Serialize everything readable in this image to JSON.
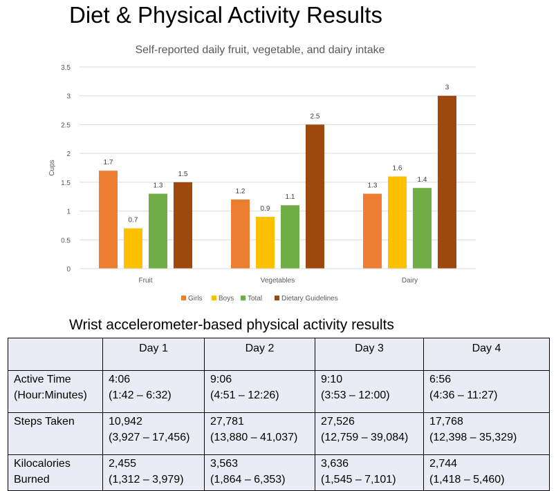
{
  "title": "Diet & Physical Activity Results",
  "chart_data": {
    "type": "bar",
    "title": "Self-reported daily fruit, vegetable, and dairy intake",
    "ylabel": "Cups",
    "xlabel": "",
    "ylim": [
      0,
      3.5
    ],
    "yticks": [
      "0",
      "0.5",
      "1",
      "1.5",
      "2",
      "2.5",
      "3",
      "3.5"
    ],
    "categories": [
      "Fruit",
      "Vegetables",
      "Dairy"
    ],
    "series": [
      {
        "name": "Girls",
        "color": "#ed7d31",
        "values": [
          1.7,
          1.2,
          1.3
        ],
        "labels": [
          "1.7",
          "1.2",
          "1.3"
        ]
      },
      {
        "name": "Boys",
        "color": "#ffc000",
        "values": [
          0.7,
          0.9,
          1.6
        ],
        "labels": [
          "0.7",
          "0.9",
          "1.6"
        ]
      },
      {
        "name": "Total",
        "color": "#70ad47",
        "values": [
          1.3,
          1.1,
          1.4
        ],
        "labels": [
          "1.3",
          "1.1",
          "1.4"
        ]
      },
      {
        "name": "Dietary Guidelines",
        "color": "#9e480e",
        "values": [
          1.5,
          2.5,
          3
        ],
        "labels": [
          "1.5",
          "2.5",
          "3"
        ]
      }
    ],
    "grid": true,
    "legend_position": "bottom"
  },
  "activity": {
    "heading": "Wrist accelerometer-based physical activity results",
    "columns": [
      "",
      "Day 1",
      "Day 2",
      "Day 3",
      "Day 4"
    ],
    "rows": [
      {
        "label": [
          "Active Time",
          "(Hour:Minutes)"
        ],
        "cells": [
          [
            "4:06",
            "(1:42 – 6:32)"
          ],
          [
            "9:06",
            "(4:51 – 12:26)"
          ],
          [
            "9:10",
            "(3:53 – 12:00)"
          ],
          [
            "6:56",
            "(4:36 – 11:27)"
          ]
        ]
      },
      {
        "label": [
          "Steps Taken"
        ],
        "cells": [
          [
            "10,942",
            "(3,927 – 17,456)"
          ],
          [
            "27,781",
            "(13,880 – 41,037)"
          ],
          [
            "27,526",
            "(12,759 – 39,084)"
          ],
          [
            "17,768",
            "(12,398 – 35,329)"
          ]
        ]
      },
      {
        "label": [
          "Kilocalories",
          "Burned"
        ],
        "cells": [
          [
            "2,455",
            "(1,312 – 3,979)"
          ],
          [
            "3,563",
            "(1,864 – 6,353)"
          ],
          [
            "3,636",
            "(1,545 – 7,101)"
          ],
          [
            "2,744",
            "(1,418 – 5,460)"
          ]
        ]
      }
    ]
  }
}
